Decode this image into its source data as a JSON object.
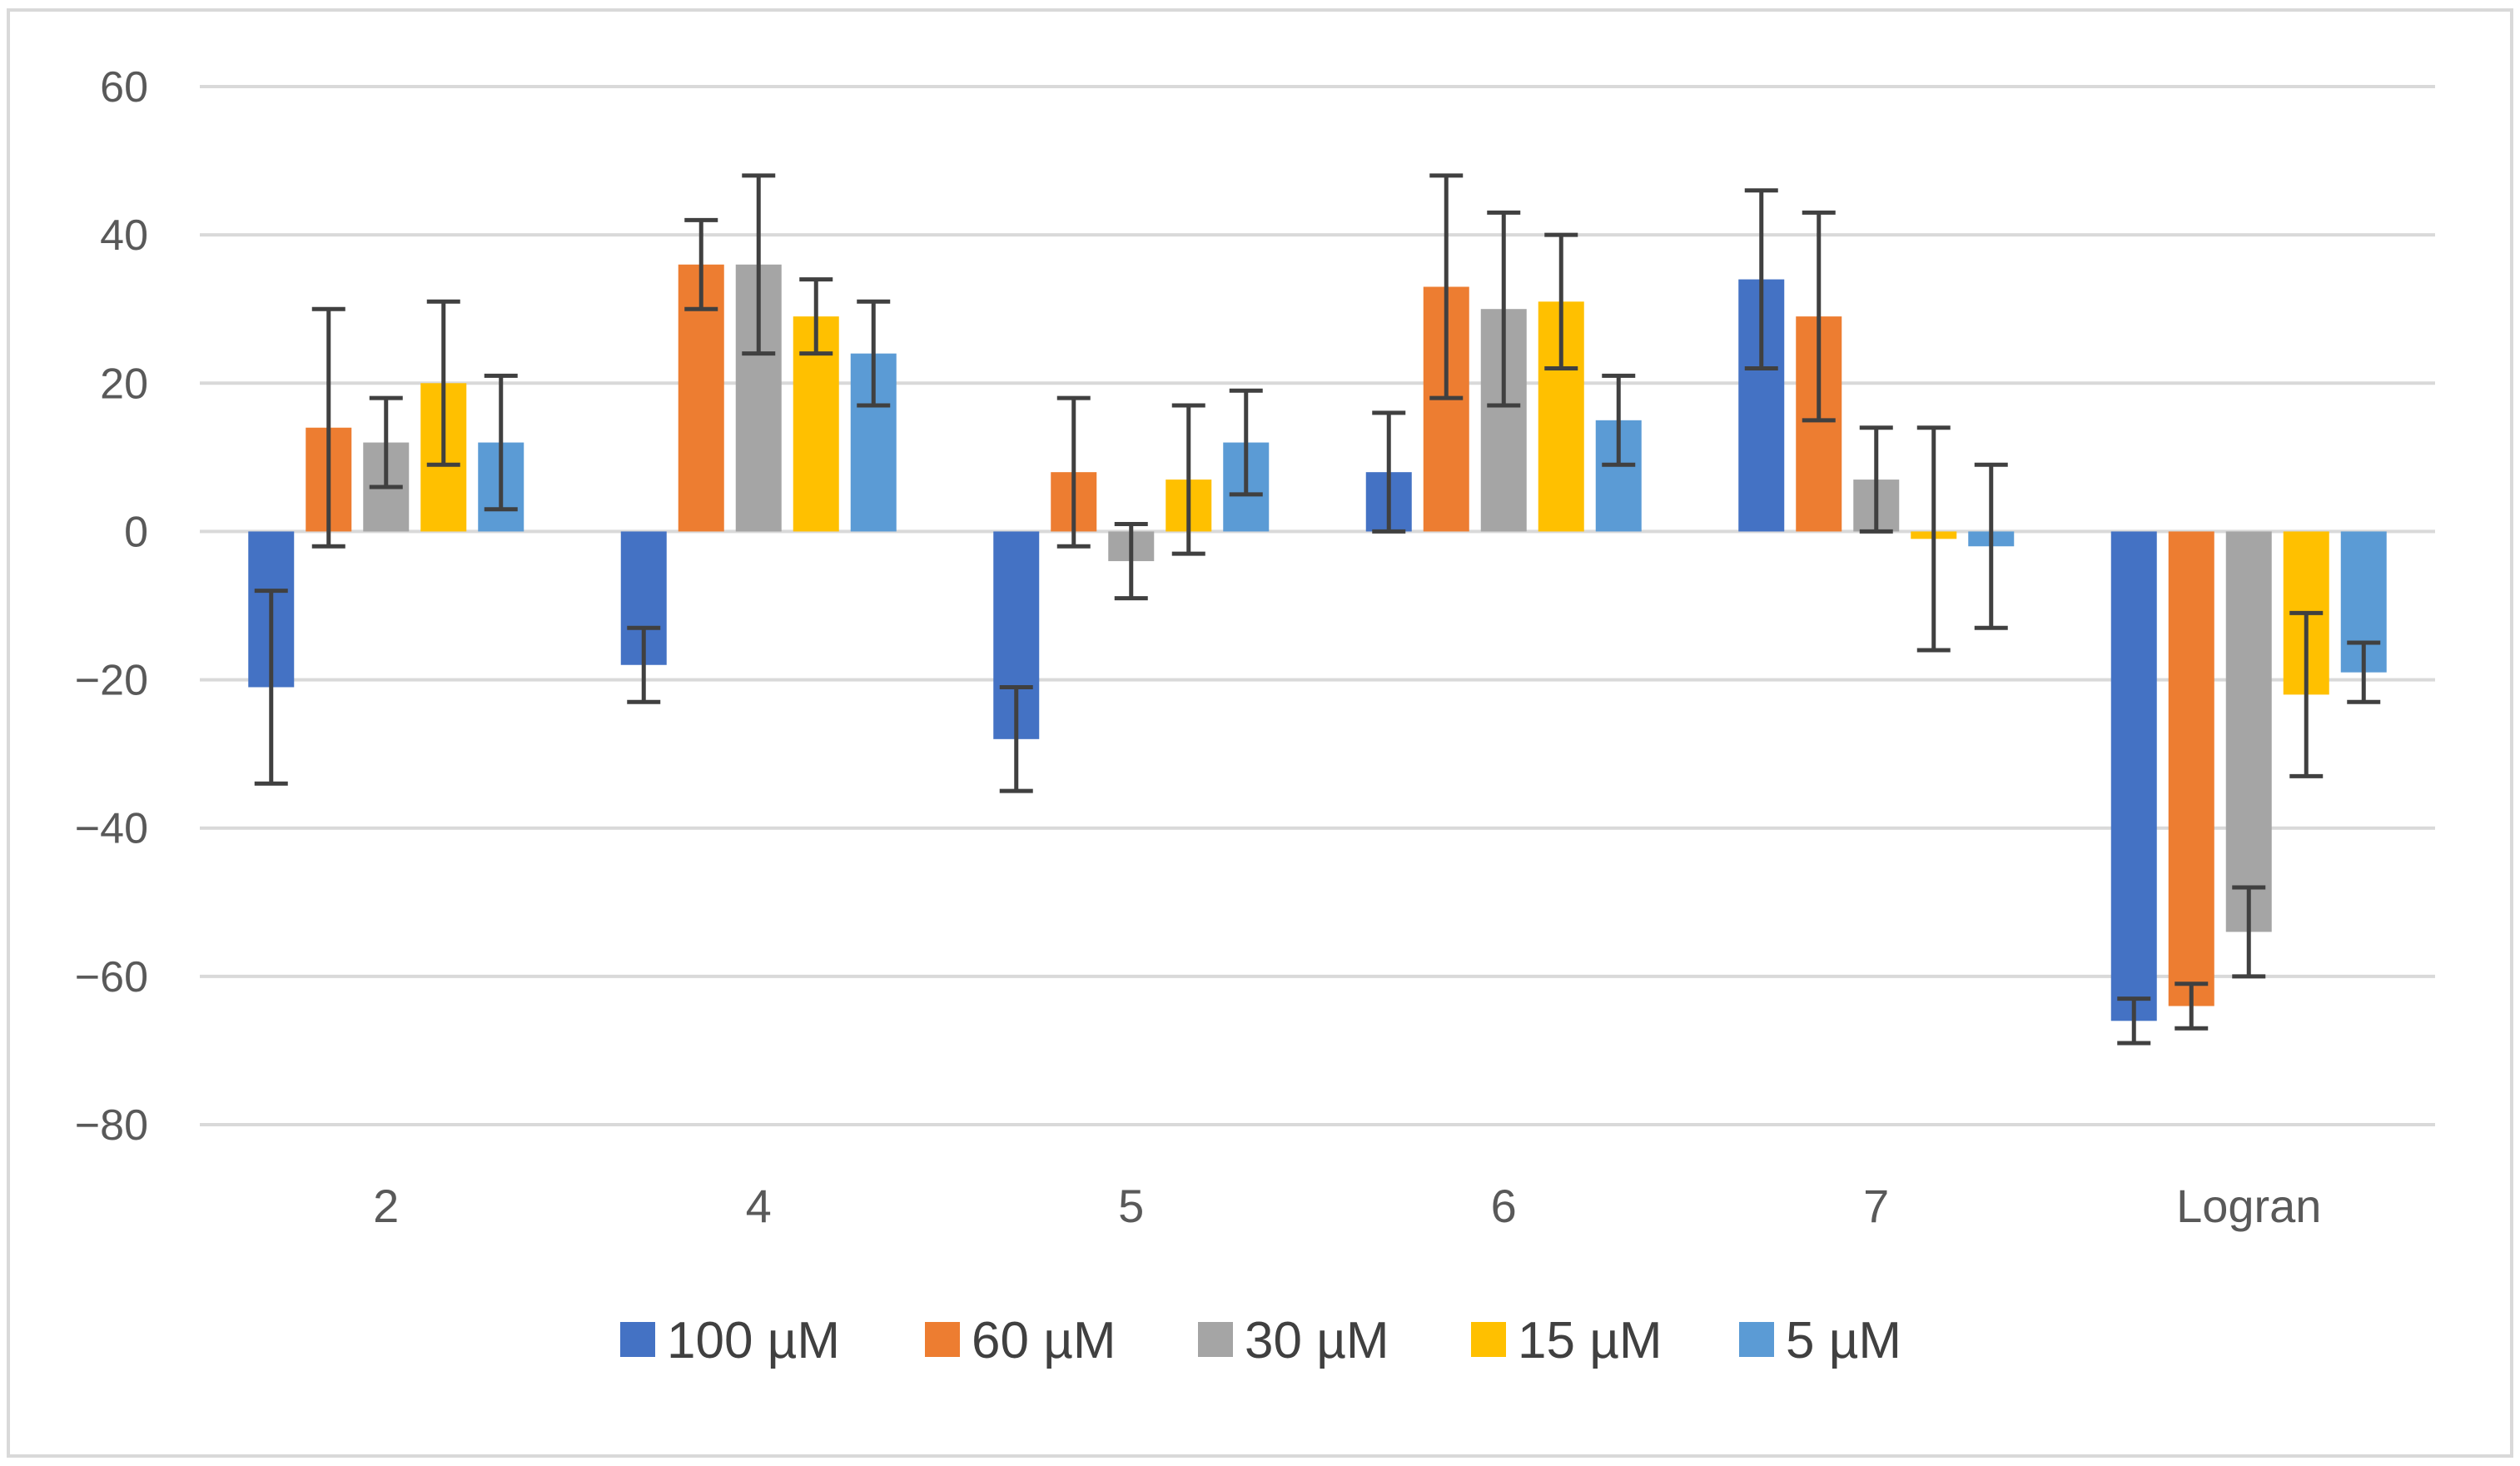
{
  "chart_data": {
    "type": "bar",
    "title": "",
    "xlabel": "",
    "ylabel": "",
    "ylim": [
      -80,
      60
    ],
    "yticks": [
      60,
      40,
      20,
      0,
      -20,
      -40,
      -60,
      -80
    ],
    "ytick_labels": [
      "60",
      "40",
      "20",
      "0",
      "−20",
      "−40",
      "−60",
      "−80"
    ],
    "grid": true,
    "legend_position": "bottom",
    "categories": [
      "2",
      "4",
      "5",
      "6",
      "7",
      "Logran"
    ],
    "series": [
      {
        "name": "100 µM",
        "color": "#4472c4",
        "values": [
          -21,
          -18,
          -28,
          8,
          34,
          -66
        ],
        "err_low": [
          -34,
          -23,
          -35,
          0,
          22,
          -69
        ],
        "err_high": [
          -8,
          -13,
          -21,
          16,
          46,
          -63
        ]
      },
      {
        "name": "60 µM",
        "color": "#ed7d31",
        "values": [
          14,
          36,
          8,
          33,
          29,
          -64
        ],
        "err_low": [
          -2,
          30,
          -2,
          18,
          15,
          -67
        ],
        "err_high": [
          30,
          42,
          18,
          48,
          43,
          -61
        ]
      },
      {
        "name": "30 µM",
        "color": "#a5a5a5",
        "values": [
          12,
          36,
          -4,
          30,
          7,
          -54
        ],
        "err_low": [
          6,
          24,
          -9,
          17,
          0,
          -60
        ],
        "err_high": [
          18,
          48,
          1,
          43,
          14,
          -48
        ]
      },
      {
        "name": "15 µM",
        "color": "#ffc000",
        "values": [
          20,
          29,
          7,
          31,
          -1,
          -22
        ],
        "err_low": [
          9,
          24,
          -3,
          22,
          -16,
          -33
        ],
        "err_high": [
          31,
          34,
          17,
          40,
          14,
          -11
        ]
      },
      {
        "name": "5 µM",
        "color": "#5b9bd5",
        "values": [
          12,
          24,
          12,
          15,
          -2,
          -19
        ],
        "err_low": [
          3,
          17,
          5,
          9,
          -13,
          -23
        ],
        "err_high": [
          21,
          31,
          19,
          21,
          9,
          -15
        ]
      }
    ]
  },
  "colors": {
    "grid": "#d9d9d9",
    "frame": "#d9d9d9",
    "error_bar": "#404040"
  }
}
